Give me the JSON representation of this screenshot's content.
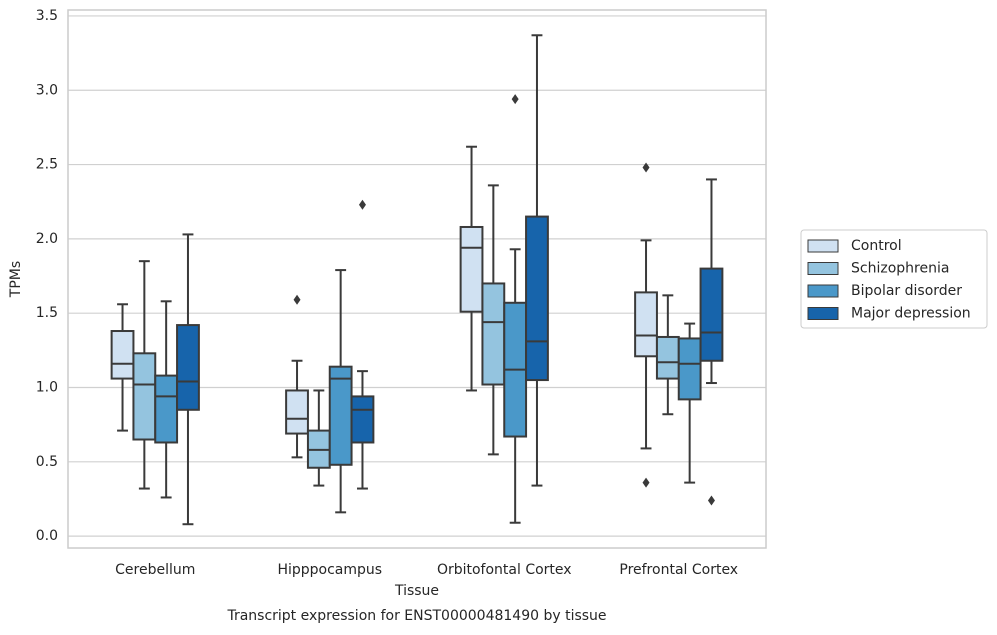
{
  "chart_data": {
    "type": "box",
    "title": "Transcript expression for ENST00000481490 by tissue",
    "x_label": "Tissue",
    "y_label": "TPMs",
    "categories": [
      "Cerebellum",
      "Hipppocampus",
      "Orbitofontal Cortex",
      "Prefrontal Cortex"
    ],
    "ylim": [
      -0.08,
      3.54
    ],
    "yticks": [
      {
        "value": 0,
        "label": "0.0"
      },
      0.5,
      {
        "value": 1,
        "label": "1.0"
      },
      1.5,
      {
        "value": 2,
        "label": "2.0"
      },
      2.5,
      {
        "value": 3,
        "label": "3.0"
      },
      3.5
    ],
    "grid": true,
    "legend": "right",
    "series": [
      {
        "name": "Control",
        "color": "#d0e1f2",
        "boxes": [
          {
            "min": 0.71,
            "q1": 1.06,
            "median": 1.16,
            "q3": 1.38,
            "max": 1.56,
            "outliers": []
          },
          {
            "min": 0.53,
            "q1": 0.69,
            "median": 0.79,
            "q3": 0.98,
            "max": 1.18,
            "outliers": [
              1.59
            ]
          },
          {
            "min": 0.98,
            "q1": 1.51,
            "median": 1.94,
            "q3": 2.08,
            "max": 2.62,
            "outliers": []
          },
          {
            "min": 0.59,
            "q1": 1.21,
            "median": 1.35,
            "q3": 1.64,
            "max": 1.99,
            "outliers": [
              2.48,
              0.36
            ]
          }
        ]
      },
      {
        "name": "Schizophrenia",
        "color": "#94c4df",
        "boxes": [
          {
            "min": 0.32,
            "q1": 0.65,
            "median": 1.02,
            "q3": 1.23,
            "max": 1.85,
            "outliers": []
          },
          {
            "min": 0.34,
            "q1": 0.46,
            "median": 0.58,
            "q3": 0.71,
            "max": 0.98,
            "outliers": []
          },
          {
            "min": 0.55,
            "q1": 1.02,
            "median": 1.44,
            "q3": 1.7,
            "max": 2.36,
            "outliers": []
          },
          {
            "min": 0.82,
            "q1": 1.06,
            "median": 1.17,
            "q3": 1.34,
            "max": 1.62,
            "outliers": []
          }
        ]
      },
      {
        "name": "Bipolar disorder",
        "color": "#4a98c9",
        "boxes": [
          {
            "min": 0.26,
            "q1": 0.63,
            "median": 0.94,
            "q3": 1.08,
            "max": 1.58,
            "outliers": []
          },
          {
            "min": 0.16,
            "q1": 0.48,
            "median": 1.06,
            "q3": 1.14,
            "max": 1.79,
            "outliers": []
          },
          {
            "min": 0.09,
            "q1": 0.67,
            "median": 1.12,
            "q3": 1.57,
            "max": 1.93,
            "outliers": [
              2.94
            ]
          },
          {
            "min": 0.36,
            "q1": 0.92,
            "median": 1.16,
            "q3": 1.33,
            "max": 1.43,
            "outliers": []
          }
        ]
      },
      {
        "name": "Major depression",
        "color": "#1764ab",
        "boxes": [
          {
            "min": 0.08,
            "q1": 0.85,
            "median": 1.04,
            "q3": 1.42,
            "max": 2.03,
            "outliers": []
          },
          {
            "min": 0.32,
            "q1": 0.63,
            "median": 0.85,
            "q3": 0.94,
            "max": 1.11,
            "outliers": [
              2.23
            ]
          },
          {
            "min": 0.34,
            "q1": 1.05,
            "median": 1.31,
            "q3": 2.15,
            "max": 3.37,
            "outliers": []
          },
          {
            "min": 1.03,
            "q1": 1.18,
            "median": 1.37,
            "q3": 1.8,
            "max": 2.4,
            "outliers": [
              0.24
            ]
          }
        ]
      }
    ]
  }
}
